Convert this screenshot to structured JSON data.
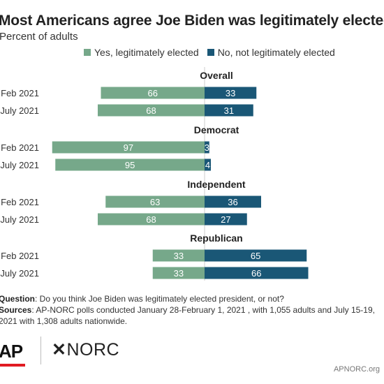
{
  "title": "Most Americans agree Joe Biden was legitimately elected",
  "subtitle": "Percent of adults",
  "colors": {
    "yes": "#76a88a",
    "no": "#1a5776",
    "label_text": "#ffffff",
    "axis": "#cccccc"
  },
  "chart_data": {
    "type": "bar",
    "orientation": "horizontal-diverging",
    "title": "Most Americans agree Joe Biden was legitimately elected",
    "subtitle": "Percent of adults",
    "series": [
      {
        "name": "Yes, legitimately elected",
        "color": "#76a88a"
      },
      {
        "name": "No, not legitimately elected",
        "color": "#1a5776"
      }
    ],
    "groups": [
      {
        "name": "Overall",
        "rows": [
          {
            "label": "Feb 2021",
            "yes": 66,
            "no": 33
          },
          {
            "label": "July 2021",
            "yes": 68,
            "no": 31
          }
        ]
      },
      {
        "name": "Democrat",
        "rows": [
          {
            "label": "Feb 2021",
            "yes": 97,
            "no": 3
          },
          {
            "label": "July 2021",
            "yes": 95,
            "no": 4
          }
        ]
      },
      {
        "name": "Independent",
        "rows": [
          {
            "label": "Feb 2021",
            "yes": 63,
            "no": 36
          },
          {
            "label": "July 2021",
            "yes": 68,
            "no": 27
          }
        ]
      },
      {
        "name": "Republican",
        "rows": [
          {
            "label": "Feb 2021",
            "yes": 33,
            "no": 65
          },
          {
            "label": "July 2021",
            "yes": 33,
            "no": 66
          }
        ]
      }
    ],
    "legend_position": "top",
    "grid": false
  },
  "notes": {
    "question_label": "Question",
    "question_text": ": Do you think Joe Biden was legitimately elected president, or not?",
    "sources_label": "Sources",
    "sources_text": ": AP-NORC polls conducted January 28-February 1, 2021 , with 1,055 adults  and July 15-19, 2021 with 1,308 adults nationwide."
  },
  "logos": {
    "ap": "AP",
    "norc": "NORC",
    "norc_mark": "✕"
  },
  "source_url": "APNORC.org"
}
